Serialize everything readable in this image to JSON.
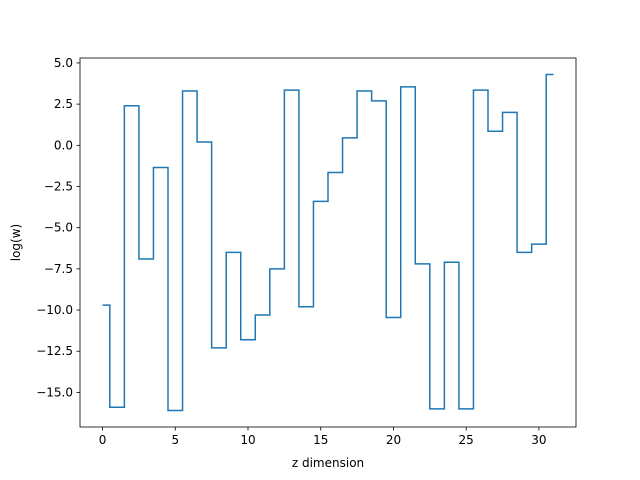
{
  "chart_data": {
    "type": "line",
    "step": "mid",
    "xlabel": "z dimension",
    "ylabel": "log(w)",
    "xlim": [
      -1.55,
      32.55
    ],
    "ylim": [
      -17.1,
      5.3
    ],
    "xticks": [
      0,
      5,
      10,
      15,
      20,
      25,
      30
    ],
    "xtick_labels": [
      "0",
      "5",
      "10",
      "15",
      "20",
      "25",
      "30"
    ],
    "yticks": [
      -15.0,
      -12.5,
      -10.0,
      -7.5,
      -5.0,
      -2.5,
      0.0,
      2.5,
      5.0
    ],
    "ytick_labels": [
      "−15.0",
      "−12.5",
      "−10.0",
      "−7.5",
      "−5.0",
      "−2.5",
      "0.0",
      "2.5",
      "5.0"
    ],
    "line_color": "#1f77b4",
    "x": [
      0,
      1,
      2,
      3,
      4,
      5,
      6,
      7,
      8,
      9,
      10,
      11,
      12,
      13,
      14,
      15,
      16,
      17,
      18,
      19,
      20,
      21,
      22,
      23,
      24,
      25,
      26,
      27,
      28,
      29,
      30,
      31
    ],
    "y": [
      -9.7,
      -15.9,
      2.4,
      -6.9,
      -1.35,
      -16.1,
      3.3,
      0.2,
      -12.3,
      -6.5,
      -11.8,
      -10.3,
      -7.5,
      3.35,
      -9.8,
      -3.4,
      -1.65,
      0.45,
      3.3,
      2.7,
      -10.45,
      3.55,
      -7.2,
      -16.0,
      -7.1,
      -16.0,
      3.35,
      0.85,
      2.0,
      -6.5,
      -6.0,
      4.3
    ]
  }
}
